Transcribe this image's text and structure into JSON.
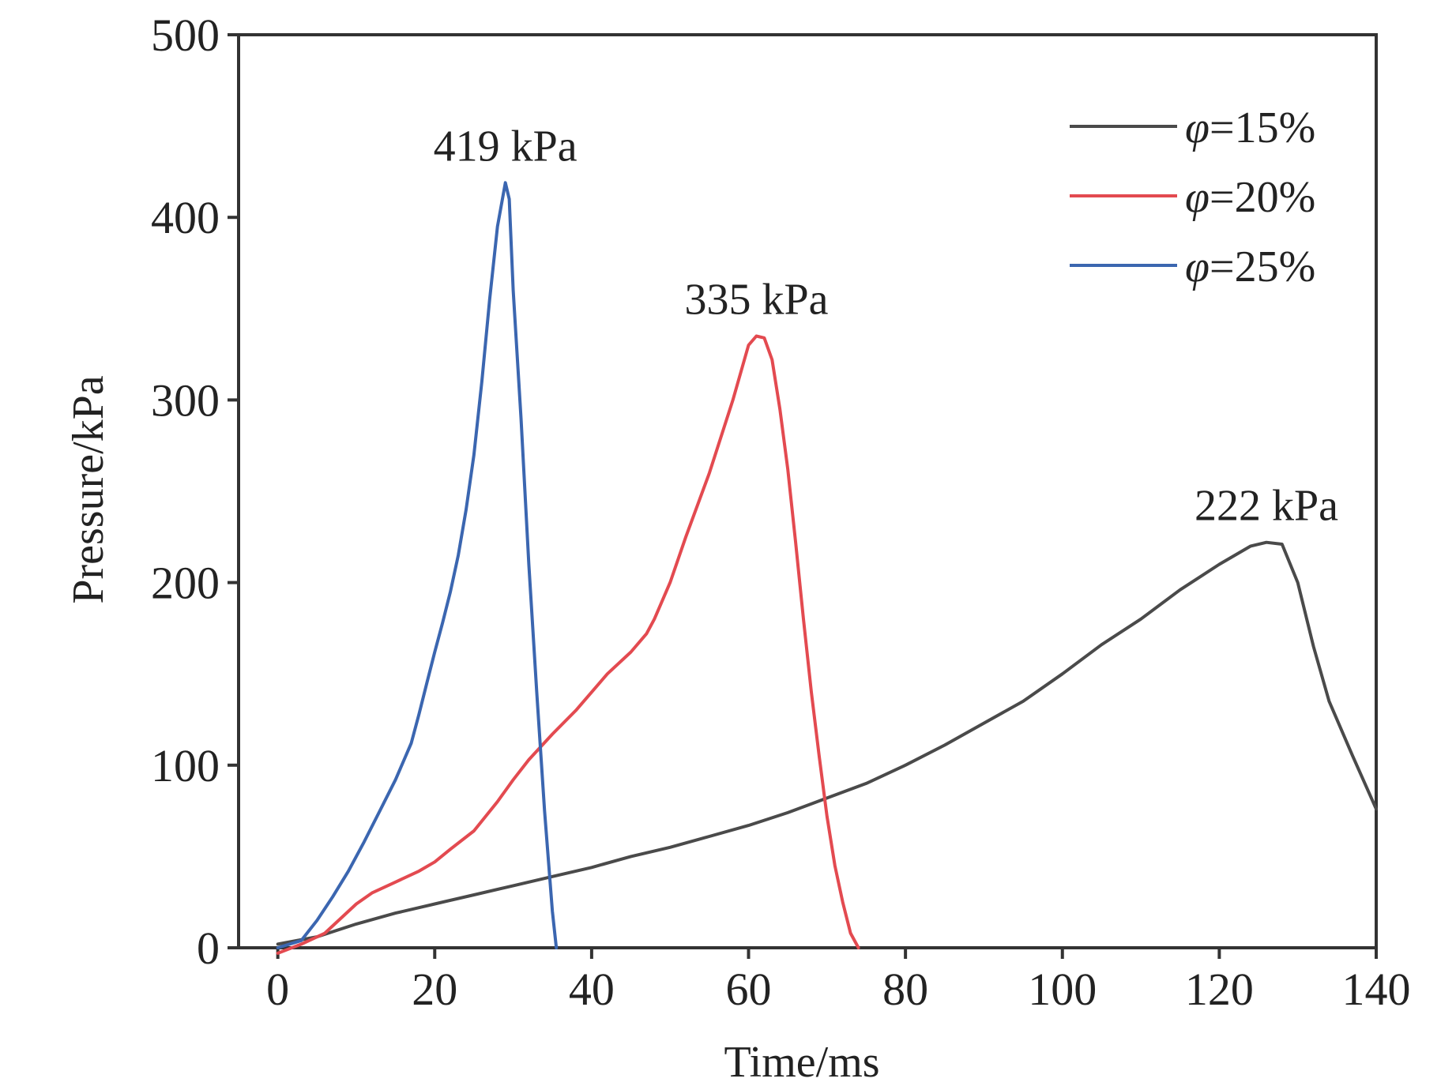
{
  "chart_data": {
    "type": "line",
    "title": "",
    "xlabel": "Time/ms",
    "ylabel": "Pressure/kPa",
    "xlim": [
      -5,
      140
    ],
    "ylim": [
      0,
      500
    ],
    "x_ticks": [
      0,
      20,
      40,
      60,
      80,
      100,
      120,
      140
    ],
    "y_ticks": [
      0,
      100,
      200,
      300,
      400,
      500
    ],
    "grid": false,
    "legend_position": "top-right",
    "series": [
      {
        "name": "φ=15%",
        "legend_symbol": "φ",
        "legend_suffix": "=15%",
        "color": "#4a4a4a",
        "peak_label": "222 kPa",
        "peak": [
          126,
          222
        ],
        "points": [
          [
            0,
            2
          ],
          [
            5,
            6
          ],
          [
            10,
            13
          ],
          [
            15,
            19
          ],
          [
            20,
            24
          ],
          [
            25,
            29
          ],
          [
            30,
            34
          ],
          [
            35,
            39
          ],
          [
            40,
            44
          ],
          [
            45,
            50
          ],
          [
            50,
            55
          ],
          [
            55,
            61
          ],
          [
            60,
            67
          ],
          [
            65,
            74
          ],
          [
            70,
            82
          ],
          [
            75,
            90
          ],
          [
            80,
            100
          ],
          [
            85,
            111
          ],
          [
            90,
            123
          ],
          [
            95,
            135
          ],
          [
            100,
            150
          ],
          [
            105,
            166
          ],
          [
            110,
            180
          ],
          [
            115,
            196
          ],
          [
            120,
            210
          ],
          [
            124,
            220
          ],
          [
            126,
            222
          ],
          [
            128,
            221
          ],
          [
            130,
            200
          ],
          [
            132,
            165
          ],
          [
            134,
            135
          ],
          [
            137,
            105
          ],
          [
            140,
            76
          ]
        ]
      },
      {
        "name": "φ=20%",
        "legend_symbol": "φ",
        "legend_suffix": "=20%",
        "color": "#e34a50",
        "peak_label": "335 kPa",
        "peak": [
          61,
          335
        ],
        "points": [
          [
            0,
            -3
          ],
          [
            3,
            2
          ],
          [
            6,
            8
          ],
          [
            8,
            16
          ],
          [
            10,
            24
          ],
          [
            12,
            30
          ],
          [
            15,
            36
          ],
          [
            18,
            42
          ],
          [
            20,
            47
          ],
          [
            22,
            54
          ],
          [
            25,
            64
          ],
          [
            28,
            80
          ],
          [
            30,
            92
          ],
          [
            32,
            103
          ],
          [
            35,
            117
          ],
          [
            38,
            130
          ],
          [
            40,
            140
          ],
          [
            42,
            150
          ],
          [
            45,
            162
          ],
          [
            47,
            172
          ],
          [
            48,
            180
          ],
          [
            50,
            200
          ],
          [
            52,
            225
          ],
          [
            55,
            260
          ],
          [
            58,
            300
          ],
          [
            60,
            330
          ],
          [
            61,
            335
          ],
          [
            62,
            334
          ],
          [
            63,
            322
          ],
          [
            64,
            295
          ],
          [
            65,
            262
          ],
          [
            66,
            222
          ],
          [
            67,
            180
          ],
          [
            68,
            140
          ],
          [
            69,
            105
          ],
          [
            70,
            72
          ],
          [
            71,
            45
          ],
          [
            72,
            25
          ],
          [
            73,
            8
          ],
          [
            74,
            0
          ]
        ]
      },
      {
        "name": "φ=25%",
        "legend_symbol": "φ",
        "legend_suffix": "=25%",
        "color": "#3b66b0",
        "peak_label": "419 kPa",
        "peak": [
          29,
          419
        ],
        "points": [
          [
            0,
            0
          ],
          [
            3,
            4
          ],
          [
            5,
            15
          ],
          [
            7,
            28
          ],
          [
            9,
            42
          ],
          [
            11,
            58
          ],
          [
            13,
            75
          ],
          [
            15,
            92
          ],
          [
            17,
            112
          ],
          [
            18,
            128
          ],
          [
            19,
            145
          ],
          [
            20,
            162
          ],
          [
            21,
            178
          ],
          [
            22,
            195
          ],
          [
            23,
            215
          ],
          [
            24,
            240
          ],
          [
            25,
            270
          ],
          [
            26,
            310
          ],
          [
            27,
            355
          ],
          [
            28,
            395
          ],
          [
            29,
            419
          ],
          [
            29.5,
            410
          ],
          [
            30,
            360
          ],
          [
            31,
            290
          ],
          [
            32,
            210
          ],
          [
            33,
            140
          ],
          [
            34,
            75
          ],
          [
            35,
            20
          ],
          [
            35.5,
            0
          ]
        ]
      }
    ]
  }
}
